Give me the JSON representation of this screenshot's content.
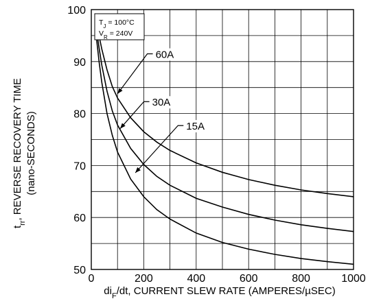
{
  "chart_data": {
    "type": "line",
    "xlabel": {
      "prefix": "di",
      "sub": "F",
      "rest": "/dt, CURRENT SLEW RATE (AMPERES/µSEC)"
    },
    "ylabel": {
      "line1_prefix": "t",
      "line1_sub": "rr",
      "line1_rest": ", REVERSE RECOVERY TIME",
      "line2": "(nano-SECONDS)"
    },
    "xlim": [
      0,
      1000
    ],
    "ylim": [
      50,
      100
    ],
    "xticks": [
      0,
      200,
      400,
      600,
      800,
      1000
    ],
    "yticks": [
      50,
      60,
      70,
      80,
      90,
      100
    ],
    "x_minor_step": 100,
    "y_minor_step": 5,
    "grid": true,
    "conditions": [
      {
        "prefix": "T",
        "sub": "J",
        "rest": " = 100°C"
      },
      {
        "prefix": "V",
        "sub": "R",
        "rest": " = 240V"
      }
    ],
    "series": [
      {
        "name": "60A",
        "label_x": 245,
        "label_y": 90.7,
        "arrow_to_x": 100,
        "arrow_to_y": 83.8,
        "points": [
          [
            20,
            97.6
          ],
          [
            30,
            94.8
          ],
          [
            40,
            92.4
          ],
          [
            60,
            88.4
          ],
          [
            80,
            85.2
          ],
          [
            100,
            83.0
          ],
          [
            150,
            79.2
          ],
          [
            200,
            76.5
          ],
          [
            250,
            74.5
          ],
          [
            300,
            72.9
          ],
          [
            400,
            70.5
          ],
          [
            500,
            68.7
          ],
          [
            600,
            67.3
          ],
          [
            700,
            66.2
          ],
          [
            800,
            65.3
          ],
          [
            900,
            64.6
          ],
          [
            1000,
            64.0
          ]
        ]
      },
      {
        "name": "30A",
        "label_x": 232,
        "label_y": 81.5,
        "arrow_to_x": 110,
        "arrow_to_y": 77.1,
        "points": [
          [
            20,
            96.2
          ],
          [
            30,
            92.5
          ],
          [
            40,
            89.3
          ],
          [
            60,
            84.3
          ],
          [
            80,
            80.5
          ],
          [
            100,
            77.8
          ],
          [
            150,
            73.3
          ],
          [
            200,
            70.2
          ],
          [
            250,
            67.9
          ],
          [
            300,
            66.2
          ],
          [
            400,
            63.7
          ],
          [
            500,
            62.0
          ],
          [
            600,
            60.6
          ],
          [
            700,
            59.5
          ],
          [
            800,
            58.6
          ],
          [
            900,
            57.9
          ],
          [
            1000,
            57.3
          ]
        ]
      },
      {
        "name": "15A",
        "label_x": 362,
        "label_y": 76.9,
        "arrow_to_x": 168,
        "arrow_to_y": 68.6,
        "points": [
          [
            20,
            94.4
          ],
          [
            30,
            89.8
          ],
          [
            40,
            86.0
          ],
          [
            60,
            80.0
          ],
          [
            80,
            75.8
          ],
          [
            100,
            72.6
          ],
          [
            150,
            67.4
          ],
          [
            200,
            64.0
          ],
          [
            250,
            61.5
          ],
          [
            300,
            59.7
          ],
          [
            400,
            57.0
          ],
          [
            500,
            55.2
          ],
          [
            600,
            53.9
          ],
          [
            700,
            52.9
          ],
          [
            800,
            52.1
          ],
          [
            900,
            51.5
          ],
          [
            1000,
            51.0
          ]
        ]
      }
    ]
  }
}
